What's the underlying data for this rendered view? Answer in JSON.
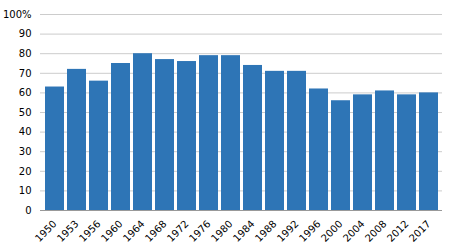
{
  "chart_data": {
    "type": "bar",
    "categories": [
      "1950",
      "1953",
      "1956",
      "1960",
      "1964",
      "1968",
      "1972",
      "1976",
      "1980",
      "1984",
      "1988",
      "1992",
      "1996",
      "2000",
      "2004",
      "2008",
      "2012",
      "2017"
    ],
    "values": [
      63,
      72,
      66,
      75,
      80,
      77,
      76,
      79,
      79,
      74,
      71,
      71,
      62,
      56,
      59,
      61,
      59,
      60
    ],
    "color": "#2e75b6",
    "ylim": [
      0,
      100
    ],
    "yticks": [
      0,
      10,
      20,
      30,
      40,
      50,
      60,
      70,
      80,
      90,
      {
        "value": 100,
        "label": "100%"
      }
    ],
    "grid": true
  }
}
